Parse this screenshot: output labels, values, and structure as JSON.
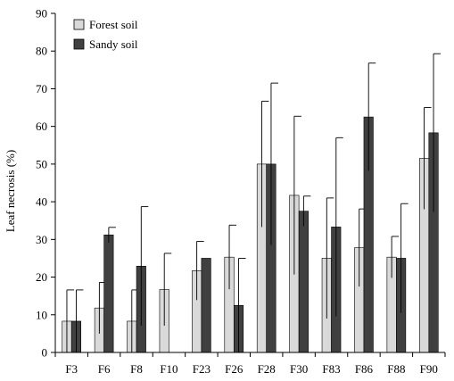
{
  "chart_data": {
    "type": "bar",
    "categories": [
      "F3",
      "F6",
      "F8",
      "F10",
      "F23",
      "F26",
      "F28",
      "F30",
      "F83",
      "F86",
      "F88",
      "F90"
    ],
    "series": [
      {
        "name": "Forest soil",
        "color": "#d9d9d9",
        "values": [
          8.3,
          11.8,
          8.3,
          16.7,
          21.7,
          25.3,
          50.0,
          41.7,
          25.0,
          27.8,
          25.3,
          51.5
        ],
        "errors": [
          8.3,
          6.8,
          8.3,
          9.6,
          7.8,
          8.5,
          16.7,
          21.0,
          16.0,
          10.3,
          5.5,
          13.5
        ]
      },
      {
        "name": "Sandy soil",
        "color": "#404040",
        "values": [
          8.3,
          31.2,
          22.9,
          0,
          25.0,
          12.5,
          50.0,
          37.5,
          33.3,
          62.5,
          25.0,
          58.3
        ],
        "errors": [
          8.3,
          2.0,
          15.8,
          0,
          0,
          12.5,
          21.5,
          4.0,
          23.7,
          14.3,
          14.5,
          21.0
        ]
      }
    ],
    "ylabel": "Leaf necrosis  (%)",
    "ylim": [
      0,
      90
    ],
    "yticks": [
      0,
      10,
      20,
      30,
      40,
      50,
      60,
      70,
      80,
      90
    ],
    "grid": false,
    "legend_position": "top-left"
  }
}
